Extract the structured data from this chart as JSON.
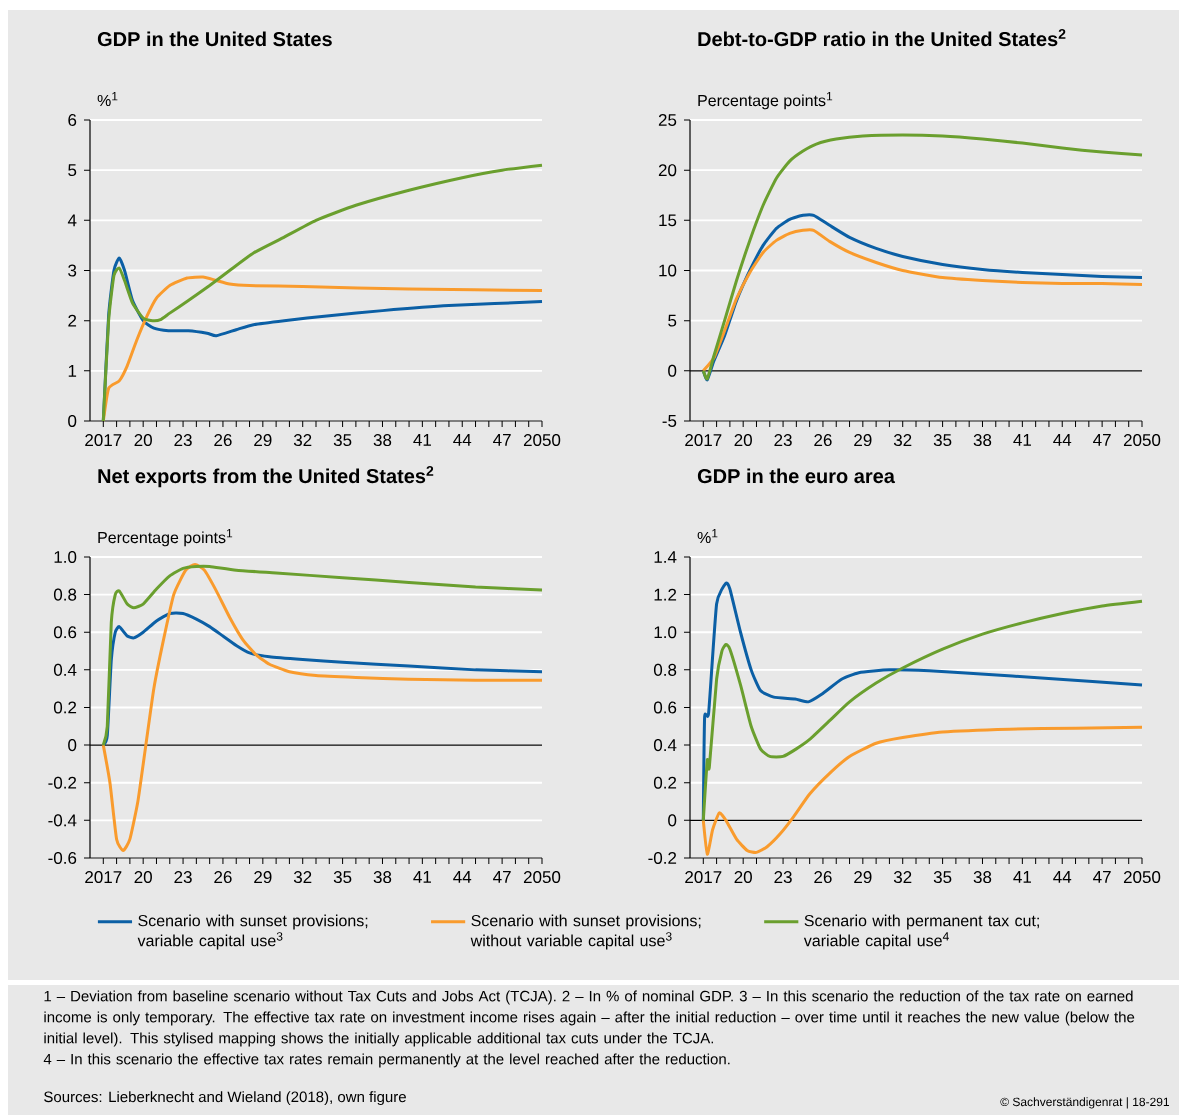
{
  "chart_data": [
    {
      "type": "line",
      "title": "GDP in the United States",
      "ylabel": "%$^{1}$",
      "xlim": [
        2016,
        2050
      ],
      "ylim": [
        0,
        6
      ],
      "yticks": [
        0,
        1,
        2,
        3,
        4,
        5,
        6
      ],
      "grid": "y",
      "xticks": [
        2017,
        {
          "value": 2018,
          "label": null
        },
        {
          "value": 2019,
          "label": null
        },
        {
          "value": 2020,
          "label": "20"
        },
        {
          "value": 2021,
          "label": null
        },
        {
          "value": 2022,
          "label": null
        },
        {
          "value": 2023,
          "label": "23"
        },
        {
          "value": 2024,
          "label": null
        },
        {
          "value": 2025,
          "label": null
        },
        {
          "value": 2026,
          "label": "26"
        },
        {
          "value": 2027,
          "label": null
        },
        {
          "value": 2028,
          "label": null
        },
        {
          "value": 2029,
          "label": "29"
        },
        {
          "value": 2030,
          "label": null
        },
        {
          "value": 2031,
          "label": null
        },
        {
          "value": 2032,
          "label": "32"
        },
        {
          "value": 2033,
          "label": null
        },
        {
          "value": 2034,
          "label": null
        },
        {
          "value": 2035,
          "label": "35"
        },
        {
          "value": 2036,
          "label": null
        },
        {
          "value": 2037,
          "label": null
        },
        {
          "value": 2038,
          "label": "38"
        },
        {
          "value": 2039,
          "label": null
        },
        {
          "value": 2040,
          "label": null
        },
        {
          "value": 2041,
          "label": "41"
        },
        {
          "value": 2042,
          "label": null
        },
        {
          "value": 2043,
          "label": null
        },
        {
          "value": 2044,
          "label": "44"
        },
        {
          "value": 2045,
          "label": null
        },
        {
          "value": 2046,
          "label": null
        },
        {
          "value": 2047,
          "label": "47"
        },
        {
          "value": 2048,
          "label": null
        },
        {
          "value": 2049,
          "label": null
        },
        2050
      ],
      "series": [
        {
          "color": "#0b5fa5",
          "x": [
            2017,
            2017.4,
            2017.8,
            2018.2,
            2018.6,
            2019.2,
            2020,
            2020.8,
            2021.9,
            2023.4,
            2024.8,
            2025.5,
            2027,
            2028.3,
            2030.6,
            2034,
            2038,
            2043,
            2050
          ],
          "values": [
            0,
            2.1,
            3.0,
            3.25,
            3.0,
            2.4,
            2.0,
            1.85,
            1.8,
            1.8,
            1.75,
            1.7,
            1.82,
            1.92,
            2.0,
            2.1,
            2.2,
            2.3,
            2.38
          ]
        },
        {
          "color": "#f99b2d",
          "x": [
            2017,
            2017.4,
            2018.2,
            2018.8,
            2019.5,
            2020.3,
            2021,
            2022,
            2023.3,
            2024.5,
            2025.5,
            2026.5,
            2028,
            2032,
            2040,
            2050
          ],
          "values": [
            0,
            0.65,
            0.8,
            1.1,
            1.6,
            2.1,
            2.45,
            2.7,
            2.85,
            2.87,
            2.8,
            2.73,
            2.7,
            2.68,
            2.63,
            2.6
          ]
        },
        {
          "color": "#6a9f2e",
          "x": [
            2017,
            2017.4,
            2017.8,
            2018.2,
            2018.6,
            2019.2,
            2020,
            2020.7,
            2021.3,
            2022,
            2023.4,
            2025,
            2026.5,
            2028.3,
            2030.5,
            2033,
            2036,
            2040,
            2044,
            2047,
            2050
          ],
          "values": [
            0,
            2.0,
            2.9,
            3.05,
            2.8,
            2.35,
            2.05,
            2.0,
            2.02,
            2.15,
            2.4,
            2.7,
            3.0,
            3.35,
            3.65,
            4.0,
            4.3,
            4.6,
            4.85,
            5.0,
            5.1
          ]
        }
      ]
    },
    {
      "type": "line",
      "title": "Debt-to-GDP ratio in the United States$^{2}$",
      "ylabel": "Percentage points$^{1}$",
      "xlim": [
        2016,
        2050
      ],
      "ylim": [
        -5,
        25
      ],
      "yticks": [
        -5,
        0,
        5,
        10,
        15,
        20,
        25
      ],
      "grid": "y",
      "ref_lines": [
        {
          "axis": "y",
          "value": 0,
          "color": "#000000"
        }
      ],
      "xticks": [
        2017,
        {
          "value": 2018,
          "label": null
        },
        {
          "value": 2019,
          "label": null
        },
        {
          "value": 2020,
          "label": "20"
        },
        {
          "value": 2021,
          "label": null
        },
        {
          "value": 2022,
          "label": null
        },
        {
          "value": 2023,
          "label": "23"
        },
        {
          "value": 2024,
          "label": null
        },
        {
          "value": 2025,
          "label": null
        },
        {
          "value": 2026,
          "label": "26"
        },
        {
          "value": 2027,
          "label": null
        },
        {
          "value": 2028,
          "label": null
        },
        {
          "value": 2029,
          "label": "29"
        },
        {
          "value": 2030,
          "label": null
        },
        {
          "value": 2031,
          "label": null
        },
        {
          "value": 2032,
          "label": "32"
        },
        {
          "value": 2033,
          "label": null
        },
        {
          "value": 2034,
          "label": null
        },
        {
          "value": 2035,
          "label": "35"
        },
        {
          "value": 2036,
          "label": null
        },
        {
          "value": 2037,
          "label": null
        },
        {
          "value": 2038,
          "label": "38"
        },
        {
          "value": 2039,
          "label": null
        },
        {
          "value": 2040,
          "label": null
        },
        {
          "value": 2041,
          "label": "41"
        },
        {
          "value": 2042,
          "label": null
        },
        {
          "value": 2043,
          "label": null
        },
        {
          "value": 2044,
          "label": "44"
        },
        {
          "value": 2045,
          "label": null
        },
        {
          "value": 2046,
          "label": null
        },
        {
          "value": 2047,
          "label": "47"
        },
        {
          "value": 2048,
          "label": null
        },
        {
          "value": 2049,
          "label": null
        },
        2050
      ],
      "series": [
        {
          "color": "#0b5fa5",
          "x": [
            2017,
            2017.3,
            2017.8,
            2018.6,
            2019.5,
            2020.5,
            2021.5,
            2022.5,
            2023.5,
            2024.5,
            2025.3,
            2026.5,
            2028,
            2030,
            2032,
            2035,
            2038,
            2041,
            2044,
            2047,
            2050
          ],
          "values": [
            0,
            -0.9,
            1.0,
            3.5,
            7.0,
            10.0,
            12.5,
            14.2,
            15.1,
            15.5,
            15.5,
            14.5,
            13.3,
            12.2,
            11.4,
            10.6,
            10.1,
            9.8,
            9.6,
            9.4,
            9.3
          ]
        },
        {
          "color": "#f99b2d",
          "x": [
            2017,
            2017.3,
            2017.8,
            2018.6,
            2019.5,
            2020.5,
            2021.5,
            2022.5,
            2023.5,
            2024.5,
            2025.3,
            2026.5,
            2028,
            2030,
            2032,
            2035,
            2038,
            2041,
            2044,
            2047,
            2050
          ],
          "values": [
            0,
            null,
            1.3,
            4.0,
            7.2,
            9.8,
            11.8,
            13.0,
            13.7,
            14.0,
            14.0,
            12.9,
            11.8,
            10.8,
            10.0,
            9.3,
            9.0,
            8.8,
            8.7,
            8.7,
            8.6
          ]
        },
        {
          "color": "#6a9f2e",
          "x": [
            2017,
            2017.3,
            2017.8,
            2018.6,
            2019.5,
            2020.5,
            2021.5,
            2022.5,
            2023.5,
            2024.5,
            2025.5,
            2027,
            2029,
            2032,
            2035,
            2038,
            2041,
            2044,
            2047,
            2050
          ],
          "values": [
            0,
            -0.8,
            1.5,
            5.0,
            9.0,
            13.0,
            16.5,
            19.2,
            20.9,
            21.9,
            22.6,
            23.1,
            23.4,
            23.5,
            23.4,
            23.1,
            22.7,
            22.2,
            21.8,
            21.5
          ]
        }
      ]
    },
    {
      "type": "line",
      "title": "Net exports from the United States$^{2}$",
      "ylabel": "Percentage points$^{1}$",
      "xlim": [
        2016,
        2050
      ],
      "ylim": [
        -0.6,
        1.0
      ],
      "yticks": [
        -0.6,
        -0.4,
        -0.2,
        0,
        0.2,
        0.4,
        0.6,
        0.8,
        {
          "value": 1.0,
          "label": "1.0"
        }
      ],
      "grid": "y",
      "legend": "bottom",
      "ref_lines": [
        {
          "axis": "y",
          "value": 0,
          "color": "#000000"
        }
      ],
      "xticks": [
        2017,
        {
          "value": 2018,
          "label": null
        },
        {
          "value": 2019,
          "label": null
        },
        {
          "value": 2020,
          "label": "20"
        },
        {
          "value": 2021,
          "label": null
        },
        {
          "value": 2022,
          "label": null
        },
        {
          "value": 2023,
          "label": "23"
        },
        {
          "value": 2024,
          "label": null
        },
        {
          "value": 2025,
          "label": null
        },
        {
          "value": 2026,
          "label": "26"
        },
        {
          "value": 2027,
          "label": null
        },
        {
          "value": 2028,
          "label": null
        },
        {
          "value": 2029,
          "label": "29"
        },
        {
          "value": 2030,
          "label": null
        },
        {
          "value": 2031,
          "label": null
        },
        {
          "value": 2032,
          "label": "32"
        },
        {
          "value": 2033,
          "label": null
        },
        {
          "value": 2034,
          "label": null
        },
        {
          "value": 2035,
          "label": "35"
        },
        {
          "value": 2036,
          "label": null
        },
        {
          "value": 2037,
          "label": null
        },
        {
          "value": 2038,
          "label": "38"
        },
        {
          "value": 2039,
          "label": null
        },
        {
          "value": 2040,
          "label": null
        },
        {
          "value": 2041,
          "label": "41"
        },
        {
          "value": 2042,
          "label": null
        },
        {
          "value": 2043,
          "label": null
        },
        {
          "value": 2044,
          "label": "44"
        },
        {
          "value": 2045,
          "label": null
        },
        {
          "value": 2046,
          "label": null
        },
        {
          "value": 2047,
          "label": "47"
        },
        {
          "value": 2048,
          "label": null
        },
        {
          "value": 2049,
          "label": null
        },
        2050
      ],
      "annotations": [
        "1 – Deviation from baseline scenario without Tax Cuts and Jobs Act (TCJA).  2 – In % of nominal GDP.  3 – In this scenario the reduction of the tax rate on earned income is only temporary. The effective tax rate on investment income rises again – after the initial reduction – over time until it reaches the new value (below the initial level). This stylised mapping shows the initially applicable additional tax cuts under the TCJA.",
        "4 – In this scenario the effective tax rates remain permanently at the level reached after the reduction.",
        "Sources: Lieberknecht and Wieland (2018), own figure",
        "© Sachverständigenrat | 18-291"
      ],
      "series": [
        {
          "name": "Scenario with sunset provisions; variable capital use$^{3}$",
          "color": "#0b5fa5",
          "x": [
            2017,
            2017.3,
            2017.6,
            2017.9,
            2018.2,
            2018.8,
            2019.3,
            2020,
            2021,
            2022,
            2023,
            2024,
            2025,
            2026,
            2027,
            2028,
            2029.5,
            2032,
            2035,
            2040,
            2045,
            2050
          ],
          "values": [
            0,
            0.05,
            0.45,
            0.6,
            0.63,
            0.58,
            0.57,
            0.6,
            0.66,
            0.7,
            0.7,
            0.67,
            0.63,
            0.58,
            0.53,
            0.49,
            0.47,
            0.455,
            0.44,
            0.42,
            0.4,
            0.39
          ]
        },
        {
          "name": "Scenario with sunset provisions; without variable capital use$^{3}$",
          "color": "#f99b2d",
          "x": [
            2017,
            2017.5,
            2018,
            2018.5,
            2019,
            2019.6,
            2020.2,
            2020.8,
            2021.5,
            2022.3,
            2023.2,
            2023.9,
            2024.6,
            2025.5,
            2026.5,
            2027.5,
            2028.5,
            2029.5,
            2031,
            2033,
            2036,
            2040,
            2045,
            2050
          ],
          "values": [
            0,
            -0.2,
            -0.5,
            -0.56,
            -0.5,
            -0.3,
            0,
            0.3,
            0.55,
            0.8,
            0.93,
            0.96,
            0.93,
            0.82,
            0.68,
            0.56,
            0.48,
            0.43,
            0.39,
            0.37,
            0.36,
            0.35,
            0.345,
            0.345
          ]
        },
        {
          "name": "Scenario with permanent tax cut; variable capital use$^{4}$",
          "color": "#6a9f2e",
          "x": [
            2017,
            2017.3,
            2017.6,
            2017.9,
            2018.2,
            2018.8,
            2019.3,
            2020,
            2021,
            2022,
            2023,
            2024,
            2025,
            2027,
            2030,
            2035,
            2040,
            2045,
            2050
          ],
          "values": [
            0,
            0.1,
            0.65,
            0.8,
            0.82,
            0.75,
            0.73,
            0.75,
            0.83,
            0.9,
            0.94,
            0.95,
            0.95,
            0.93,
            0.915,
            0.89,
            0.865,
            0.84,
            0.825
          ]
        }
      ]
    },
    {
      "type": "line",
      "title": "GDP in the euro area",
      "ylabel": "%$^{1}$",
      "xlim": [
        2016,
        2050
      ],
      "ylim": [
        -0.2,
        1.4
      ],
      "yticks": [
        -0.2,
        0,
        0.2,
        0.4,
        0.6,
        0.8,
        {
          "value": 1.0,
          "label": "1.0"
        },
        1.2,
        1.4
      ],
      "grid": "y",
      "ref_lines": [
        {
          "axis": "y",
          "value": 0,
          "color": "#000000"
        }
      ],
      "xticks": [
        2017,
        {
          "value": 2018,
          "label": null
        },
        {
          "value": 2019,
          "label": null
        },
        {
          "value": 2020,
          "label": "20"
        },
        {
          "value": 2021,
          "label": null
        },
        {
          "value": 2022,
          "label": null
        },
        {
          "value": 2023,
          "label": "23"
        },
        {
          "value": 2024,
          "label": null
        },
        {
          "value": 2025,
          "label": null
        },
        {
          "value": 2026,
          "label": "26"
        },
        {
          "value": 2027,
          "label": null
        },
        {
          "value": 2028,
          "label": null
        },
        {
          "value": 2029,
          "label": "29"
        },
        {
          "value": 2030,
          "label": null
        },
        {
          "value": 2031,
          "label": null
        },
        {
          "value": 2032,
          "label": "32"
        },
        {
          "value": 2033,
          "label": null
        },
        {
          "value": 2034,
          "label": null
        },
        {
          "value": 2035,
          "label": "35"
        },
        {
          "value": 2036,
          "label": null
        },
        {
          "value": 2037,
          "label": null
        },
        {
          "value": 2038,
          "label": "38"
        },
        {
          "value": 2039,
          "label": null
        },
        {
          "value": 2040,
          "label": null
        },
        {
          "value": 2041,
          "label": "41"
        },
        {
          "value": 2042,
          "label": null
        },
        {
          "value": 2043,
          "label": null
        },
        {
          "value": 2044,
          "label": "44"
        },
        {
          "value": 2045,
          "label": null
        },
        {
          "value": 2046,
          "label": null
        },
        {
          "value": 2047,
          "label": "47"
        },
        {
          "value": 2048,
          "label": null
        },
        {
          "value": 2049,
          "label": null
        },
        2050
      ],
      "series": [
        {
          "color": "#0b5fa5",
          "x": [
            2017,
            2017.1,
            2017.4,
            2018,
            2018.7,
            2019,
            2019.8,
            2020.6,
            2021.3,
            2022.3,
            2023.9,
            2024.9,
            2025.9,
            2027.4,
            2028.7,
            2031,
            2034,
            2037.6,
            2042.7,
            2050
          ],
          "values": [
            0,
            0.55,
            0.57,
            1.15,
            1.26,
            1.23,
            1.0,
            0.8,
            0.69,
            0.655,
            0.645,
            0.63,
            0.67,
            0.75,
            0.785,
            0.8,
            0.795,
            0.78,
            0.755,
            0.72
          ]
        },
        {
          "color": "#f99b2d",
          "x": [
            2017,
            2017.3,
            2017.7,
            2018.2,
            2018.7,
            2019.5,
            2020.3,
            2021,
            2021.8,
            2022.8,
            2023.8,
            2025,
            2026.5,
            2028,
            2030,
            2032,
            2035,
            2040,
            2045,
            2050
          ],
          "values": [
            0,
            -0.18,
            -0.05,
            0.04,
            0.0,
            -0.1,
            -0.16,
            -0.17,
            -0.14,
            -0.07,
            0.02,
            0.14,
            0.25,
            0.34,
            0.41,
            0.44,
            0.47,
            0.485,
            0.49,
            0.495
          ]
        },
        {
          "color": "#6a9f2e",
          "x": [
            2017,
            2017.3,
            2017.45,
            2018,
            2018.4,
            2018.7,
            2019,
            2019.8,
            2020.6,
            2021.3,
            2022,
            2023,
            2024,
            2025,
            2026.5,
            2028,
            2030,
            2032,
            2035,
            2038,
            2041,
            2044,
            2047,
            2050
          ],
          "values": [
            0,
            0.32,
            0.28,
            0.75,
            0.9,
            0.935,
            0.91,
            0.72,
            0.5,
            0.38,
            0.34,
            0.34,
            0.38,
            0.43,
            0.53,
            0.63,
            0.73,
            0.81,
            0.91,
            0.99,
            1.05,
            1.1,
            1.14,
            1.165
          ]
        }
      ]
    }
  ]
}
